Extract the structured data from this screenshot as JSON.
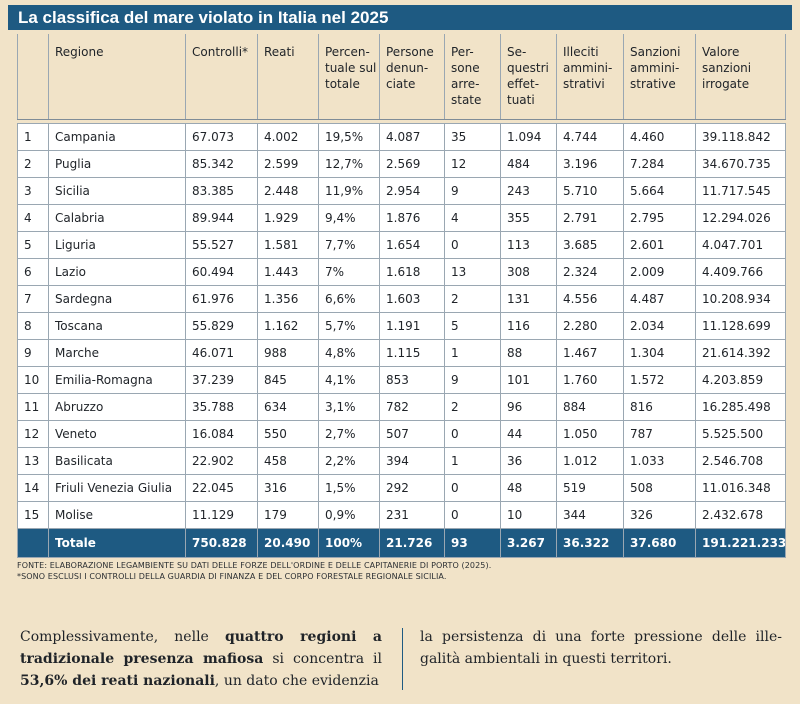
{
  "title": "La classifica del mare violato in Italia nel 2025",
  "table": {
    "headers": [
      "",
      "Regione",
      "Controlli*",
      "Reati",
      "Percen-tuale sul totale",
      "Persone denun-ciate",
      "Per-sone arre-state",
      "Se-questri effet-tuati",
      "Illeciti ammini-strativi",
      "Sanzioni ammini-strative",
      "Valore sanzioni irrogate"
    ],
    "rows": [
      [
        "1",
        "Campania",
        "67.073",
        "4.002",
        "19,5%",
        "4.087",
        "35",
        "1.094",
        "4.744",
        "4.460",
        "39.118.842"
      ],
      [
        "2",
        "Puglia",
        "85.342",
        "2.599",
        "12,7%",
        "2.569",
        "12",
        "484",
        "3.196",
        "7.284",
        "34.670.735"
      ],
      [
        "3",
        "Sicilia",
        "83.385",
        "2.448",
        "11,9%",
        "2.954",
        "9",
        "243",
        "5.710",
        "5.664",
        "11.717.545"
      ],
      [
        "4",
        "Calabria",
        "89.944",
        "1.929",
        "9,4%",
        "1.876",
        "4",
        "355",
        "2.791",
        "2.795",
        "12.294.026"
      ],
      [
        "5",
        "Liguria",
        "55.527",
        "1.581",
        "7,7%",
        "1.654",
        "0",
        "113",
        "3.685",
        "2.601",
        "4.047.701"
      ],
      [
        "6",
        "Lazio",
        "60.494",
        "1.443",
        "7%",
        "1.618",
        "13",
        "308",
        "2.324",
        "2.009",
        "4.409.766"
      ],
      [
        "7",
        "Sardegna",
        "61.976",
        "1.356",
        "6,6%",
        "1.603",
        "2",
        "131",
        "4.556",
        "4.487",
        "10.208.934"
      ],
      [
        "8",
        "Toscana",
        "55.829",
        "1.162",
        "5,7%",
        "1.191",
        "5",
        "116",
        "2.280",
        "2.034",
        "11.128.699"
      ],
      [
        "9",
        "Marche",
        "46.071",
        "988",
        "4,8%",
        "1.115",
        "1",
        "88",
        "1.467",
        "1.304",
        "21.614.392"
      ],
      [
        "10",
        "Emilia-Romagna",
        "37.239",
        "845",
        "4,1%",
        "853",
        "9",
        "101",
        "1.760",
        "1.572",
        "4.203.859"
      ],
      [
        "11",
        "Abruzzo",
        "35.788",
        "634",
        "3,1%",
        "782",
        "2",
        "96",
        "884",
        "816",
        "16.285.498"
      ],
      [
        "12",
        "Veneto",
        "16.084",
        "550",
        "2,7%",
        "507",
        "0",
        "44",
        "1.050",
        "787",
        "5.525.500"
      ],
      [
        "13",
        "Basilicata",
        "22.902",
        "458",
        "2,2%",
        "394",
        "1",
        "36",
        "1.012",
        "1.033",
        "2.546.708"
      ],
      [
        "14",
        "Friuli Venezia Giulia",
        "22.045",
        "316",
        "1,5%",
        "292",
        "0",
        "48",
        "519",
        "508",
        "11.016.348"
      ],
      [
        "15",
        "Molise",
        "11.129",
        "179",
        "0,9%",
        "231",
        "0",
        "10",
        "344",
        "326",
        "2.432.678"
      ]
    ],
    "total": [
      "",
      "Totale",
      "750.828",
      "20.490",
      "100%",
      "21.726",
      "93",
      "3.267",
      "36.322",
      "37.680",
      "191.221.233"
    ]
  },
  "notes": {
    "source": "Fonte: elaborazione Legambiente su dati delle forze dell'ordine e delle Capitanerie di porto (2025).",
    "footnote": "*Sono esclusi i controlli della Guardia di Finanza e del Corpo forestale regionale Sicilia."
  },
  "body": {
    "p1_a": "Complessivamente, nelle ",
    "p1_b": "quattro regioni a tradizionale presenza mafiosa",
    "p1_c": " si concentra il ",
    "p1_d": "53,6% dei reati nazionali",
    "p1_e": ", un dato che evidenzia",
    "p2": "la persistenza di una forte pressione delle ille-galità ambientali in questi territori."
  }
}
